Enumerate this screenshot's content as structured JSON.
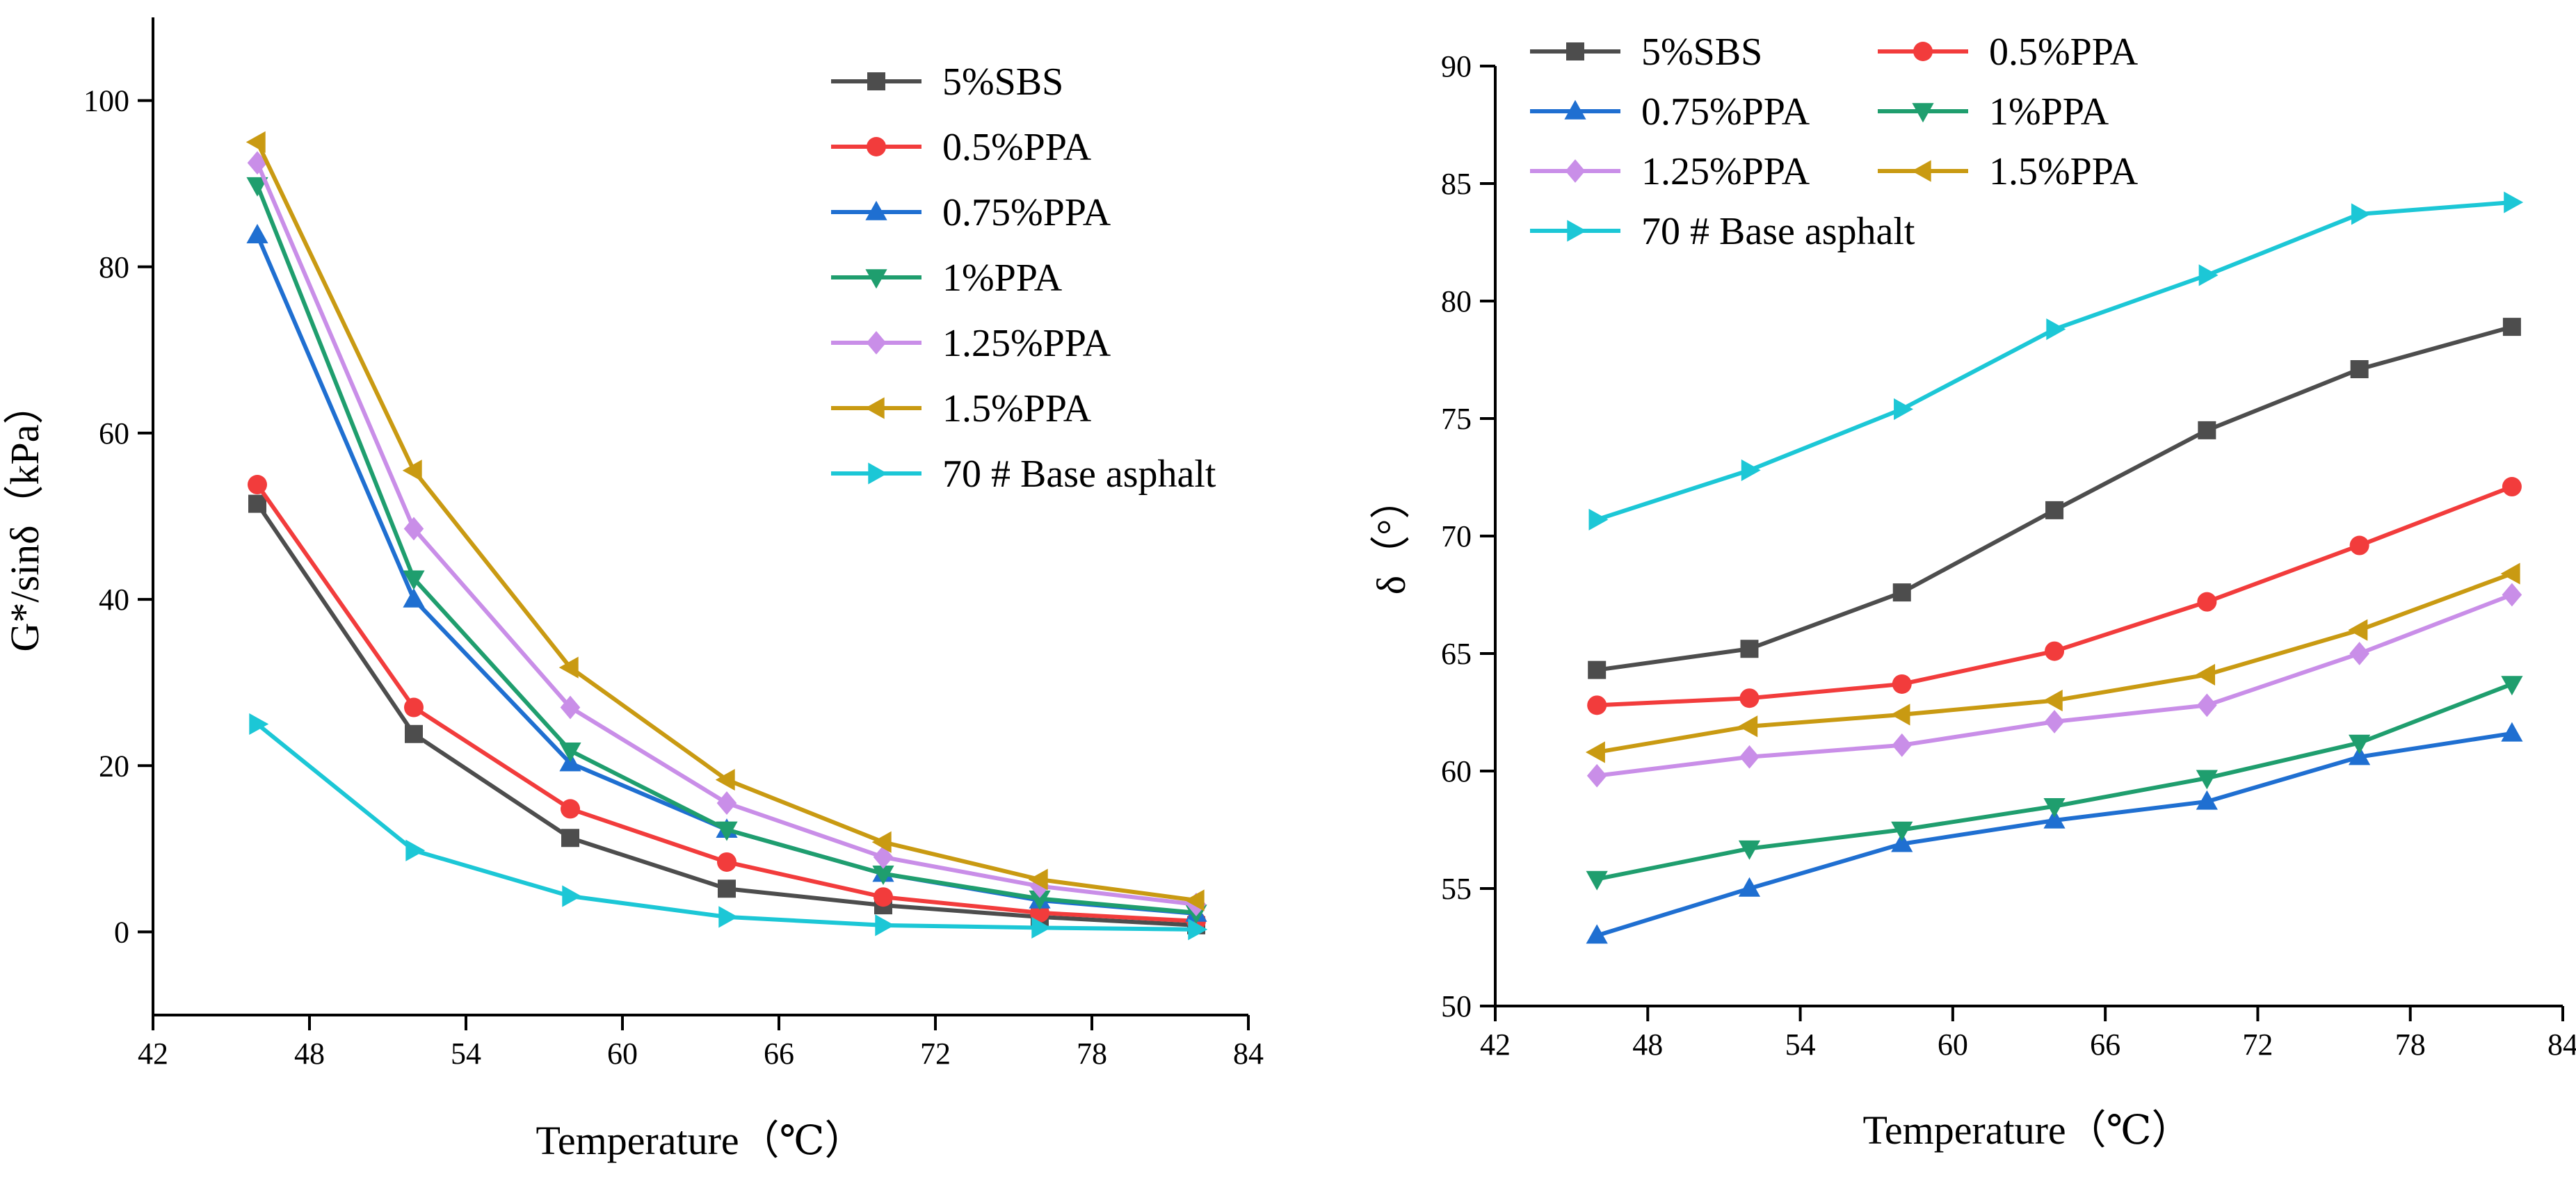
{
  "chart_data": [
    {
      "type": "line",
      "title": "",
      "xlabel": "Temperature（℃）",
      "ylabel": "G*/sinδ（kPa）",
      "xlim": [
        42,
        84
      ],
      "ylim": [
        -10,
        110
      ],
      "xticks": [
        "42",
        "48",
        "54",
        "60",
        "66",
        "72",
        "78",
        "84"
      ],
      "yticks": [
        "0",
        "20",
        "40",
        "60",
        "80",
        "100"
      ],
      "legend_position": "top-right",
      "x": [
        46,
        52,
        58,
        64,
        70,
        76,
        82
      ],
      "series": [
        {
          "name": "5%SBS",
          "color": "#4d4d4d",
          "marker": "square",
          "values": [
            51.5,
            23.8,
            11.3,
            5.2,
            3.2,
            1.8,
            0.8
          ]
        },
        {
          "name": "0.5%PPA",
          "color": "#f23c3c",
          "marker": "circle",
          "values": [
            53.8,
            27.0,
            14.8,
            8.4,
            4.2,
            2.3,
            1.3
          ]
        },
        {
          "name": "0.75%PPA",
          "color": "#1f6fd1",
          "marker": "triangle-up",
          "values": [
            83.8,
            40.0,
            20.3,
            12.3,
            7.0,
            3.8,
            2.2
          ]
        },
        {
          "name": "1%PPA",
          "color": "#1f9e6e",
          "marker": "triangle-down",
          "values": [
            89.8,
            42.5,
            21.8,
            12.3,
            7.0,
            4.0,
            2.3
          ]
        },
        {
          "name": "1.25%PPA",
          "color": "#c98ee8",
          "marker": "diamond",
          "values": [
            92.5,
            48.5,
            27.0,
            15.5,
            9.0,
            5.5,
            3.3
          ]
        },
        {
          "name": "1.5%PPA",
          "color": "#c99a12",
          "marker": "triangle-left",
          "values": [
            95.0,
            55.5,
            31.8,
            18.3,
            10.8,
            6.3,
            3.8
          ]
        },
        {
          "name": "70 # Base asphalt",
          "color": "#1cc7d6",
          "marker": "triangle-right",
          "values": [
            25.0,
            9.8,
            4.3,
            1.8,
            0.8,
            0.5,
            0.3
          ]
        }
      ]
    },
    {
      "type": "line",
      "title": "",
      "xlabel": "Temperature（℃）",
      "ylabel": "δ（°）",
      "xlim": [
        42,
        84
      ],
      "ylim": [
        50,
        90
      ],
      "xticks": [
        "42",
        "48",
        "54",
        "60",
        "66",
        "72",
        "78",
        "84"
      ],
      "yticks": [
        "50",
        "55",
        "60",
        "65",
        "70",
        "75",
        "80",
        "85",
        "90"
      ],
      "legend_position": "top-left",
      "x": [
        46,
        52,
        58,
        64,
        70,
        76,
        82
      ],
      "series": [
        {
          "name": "5%SBS",
          "color": "#4d4d4d",
          "marker": "square",
          "values": [
            64.3,
            65.2,
            67.6,
            71.1,
            74.5,
            77.1,
            78.9
          ]
        },
        {
          "name": "0.5%PPA",
          "color": "#f23c3c",
          "marker": "circle",
          "values": [
            62.8,
            63.1,
            63.7,
            65.1,
            67.2,
            69.6,
            72.1
          ]
        },
        {
          "name": "0.75%PPA",
          "color": "#1f6fd1",
          "marker": "triangle-up",
          "values": [
            53.0,
            55.0,
            56.9,
            57.9,
            58.7,
            60.6,
            61.6
          ]
        },
        {
          "name": "1%PPA",
          "color": "#1f9e6e",
          "marker": "triangle-down",
          "values": [
            55.4,
            56.7,
            57.5,
            58.5,
            59.7,
            61.2,
            63.7
          ]
        },
        {
          "name": "1.25%PPA",
          "color": "#c98ee8",
          "marker": "diamond",
          "values": [
            59.8,
            60.6,
            61.1,
            62.1,
            62.8,
            65.0,
            67.5
          ]
        },
        {
          "name": "1.5%PPA",
          "color": "#c99a12",
          "marker": "triangle-left",
          "values": [
            60.8,
            61.9,
            62.4,
            63.0,
            64.1,
            66.0,
            68.4
          ]
        },
        {
          "name": "70 # Base asphalt",
          "color": "#1cc7d6",
          "marker": "triangle-right",
          "values": [
            70.7,
            72.8,
            75.4,
            78.8,
            81.1,
            83.7,
            84.2
          ]
        }
      ]
    }
  ]
}
